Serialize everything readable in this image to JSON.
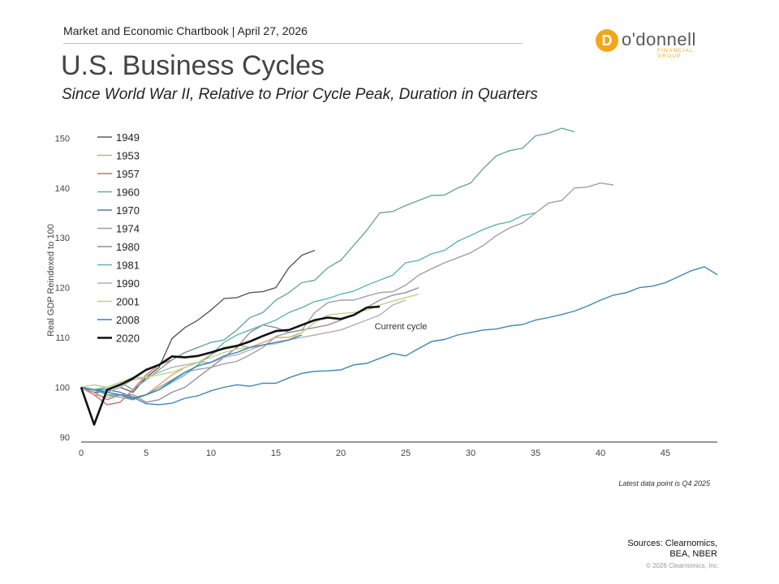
{
  "header": {
    "chartbook_line": "Market and Economic Chartbook | April 27, 2026"
  },
  "title": "U.S. Business Cycles",
  "subtitle": "Since World War II, Relative to Prior Cycle Peak, Duration in Quarters",
  "logo": {
    "mark": "D",
    "name": "o'donnell",
    "tagline": "FINANCIAL GROUP",
    "color": "#f2a71b"
  },
  "footer": {
    "latest": "Latest data point is Q4 2025",
    "sources_line1": "Sources: Clearnomics,",
    "sources_line2": "BEA, NBER",
    "copyright": "© 2026 Clearnomics, Inc."
  },
  "chart_data": {
    "type": "line",
    "ylabel": "Real GDP Reindexed to 100",
    "xlabel": "",
    "xlim": [
      0,
      49
    ],
    "ylim": [
      89,
      153
    ],
    "xticks": [
      0,
      5,
      10,
      15,
      20,
      25,
      30,
      35,
      40,
      45
    ],
    "yticks": [
      90,
      100,
      110,
      120,
      130,
      140,
      150
    ],
    "grid": false,
    "legend_position": "top-left",
    "annotation": "Current cycle",
    "series": [
      {
        "name": "1949",
        "color": "#595959",
        "values": [
          100,
          99,
          99,
          100,
          99,
          102,
          104,
          109.8,
          112,
          113.5,
          115.5,
          117.8,
          118,
          119,
          119.2,
          120,
          124,
          126.5,
          127.5
        ]
      },
      {
        "name": "1953",
        "color": "#e0a86e",
        "values": [
          100,
          98.5,
          98,
          98.5,
          98,
          98.5,
          100.5,
          102.5,
          104,
          105,
          106.5,
          108,
          108.5,
          108,
          109,
          110,
          110,
          111
        ]
      },
      {
        "name": "1957",
        "color": "#d66a6a",
        "values": [
          100,
          98.5,
          96.5,
          97,
          99.5,
          102.5,
          104.5,
          105.5,
          107,
          108
        ]
      },
      {
        "name": "1960",
        "color": "#6aaa8e",
        "values": [
          100,
          99.5,
          100,
          101,
          99.5,
          101.5,
          103.5,
          105.5,
          107,
          108,
          109,
          109.5,
          111.5,
          114,
          115,
          117.5,
          119,
          121,
          121.5,
          124,
          125.5,
          128.5,
          131.5,
          135,
          135.3,
          136.5,
          137.5,
          138.5,
          138.6,
          140,
          141,
          144,
          146.5,
          147.5,
          148,
          150.5,
          151,
          152,
          151.3
        ]
      },
      {
        "name": "1970",
        "color": "#3e86b4",
        "values": [
          100,
          99.5,
          99.5,
          99,
          98,
          96.7,
          96.5,
          96.8,
          97.8,
          98.3,
          99.3,
          100,
          100.5,
          100.2,
          100.8,
          100.8,
          101.9,
          102.8,
          103.2,
          103.3,
          103.5,
          104.5,
          104.8,
          105.8,
          106.8,
          106.3,
          107.8,
          109.2,
          109.6,
          110.5,
          111,
          111.5,
          111.7,
          112.3,
          112.6,
          113.5,
          114,
          114.6,
          115.3,
          116.3,
          117.5,
          118.5,
          119,
          120,
          120.3,
          121,
          122.2,
          123.4,
          124.2,
          122.6
        ]
      },
      {
        "name": "1974",
        "color": "#a0a0a0",
        "values": [
          100,
          99.5,
          98.5,
          98,
          97.5,
          98.5,
          100,
          101.5,
          103,
          103.6,
          104,
          104.7,
          105.2,
          106.5,
          108,
          110.2,
          111,
          111.5,
          115,
          117,
          117.5,
          117.5,
          118.3,
          119,
          119.2,
          120.5,
          122.5,
          123.8,
          125,
          126,
          127,
          128.5,
          130.5,
          132,
          133,
          135,
          137,
          137.5,
          140,
          140.2,
          141,
          140.6
        ]
      },
      {
        "name": "1980",
        "color": "#9a8a9c",
        "values": [
          100,
          99,
          97.5,
          98.5,
          98.5,
          97,
          97.5,
          99,
          100,
          102,
          104,
          106,
          108,
          111,
          112.5,
          112,
          111,
          111.5,
          112,
          112.5,
          113.5,
          114.5,
          116,
          117.5,
          118.5,
          119,
          120
        ]
      },
      {
        "name": "1981",
        "color": "#5cb5b2",
        "values": [
          100,
          99.5,
          98.5,
          98.5,
          97.5,
          98.5,
          99.5,
          101,
          102.5,
          104.5,
          106.5,
          109,
          110.5,
          111.5,
          112.5,
          113.5,
          115,
          116,
          117.2,
          117.8,
          118.7,
          119.3,
          120.5,
          121.5,
          122.5,
          125,
          125.5,
          126.8,
          127.5,
          129.3,
          130.5,
          131.7,
          132.7,
          133.2,
          134.5,
          135
        ]
      },
      {
        "name": "1990",
        "color": "#b0b0b0",
        "values": [
          100,
          99.5,
          99,
          100,
          101.5,
          102,
          103,
          104,
          104.5,
          105,
          105,
          106,
          106.5,
          107.5,
          108.5,
          109,
          109.5,
          110,
          110.5,
          111,
          111.5,
          112.5,
          113.5,
          114.5,
          116.5,
          117.5
        ]
      },
      {
        "name": "2001",
        "color": "#b8d58a",
        "values": [
          100,
          100.5,
          100,
          101,
          102,
          102,
          102.5,
          103,
          104,
          105,
          106,
          107,
          107.7,
          108,
          108.5,
          108.7,
          109.5,
          111,
          113,
          114.5,
          114.8,
          115,
          115.5,
          116.5,
          117.3,
          118,
          118.7
        ]
      },
      {
        "name": "2008",
        "color": "#3a7fb8",
        "values": [
          100,
          99.5,
          99,
          98.5,
          97.7,
          98.5,
          99.5,
          101.3,
          103,
          104.3,
          105,
          106.3,
          107,
          108,
          108.5,
          109,
          109.5,
          110.5
        ]
      },
      {
        "name": "2020",
        "color": "#111111",
        "values": [
          100,
          92.5,
          99.5,
          100.5,
          101.8,
          103.5,
          104.5,
          106.2,
          106,
          106.3,
          107,
          107.8,
          108.3,
          109.2,
          110.3,
          111.3,
          111.5,
          112.5,
          113.5,
          114,
          113.7,
          114.5,
          116,
          116.2
        ]
      }
    ]
  }
}
